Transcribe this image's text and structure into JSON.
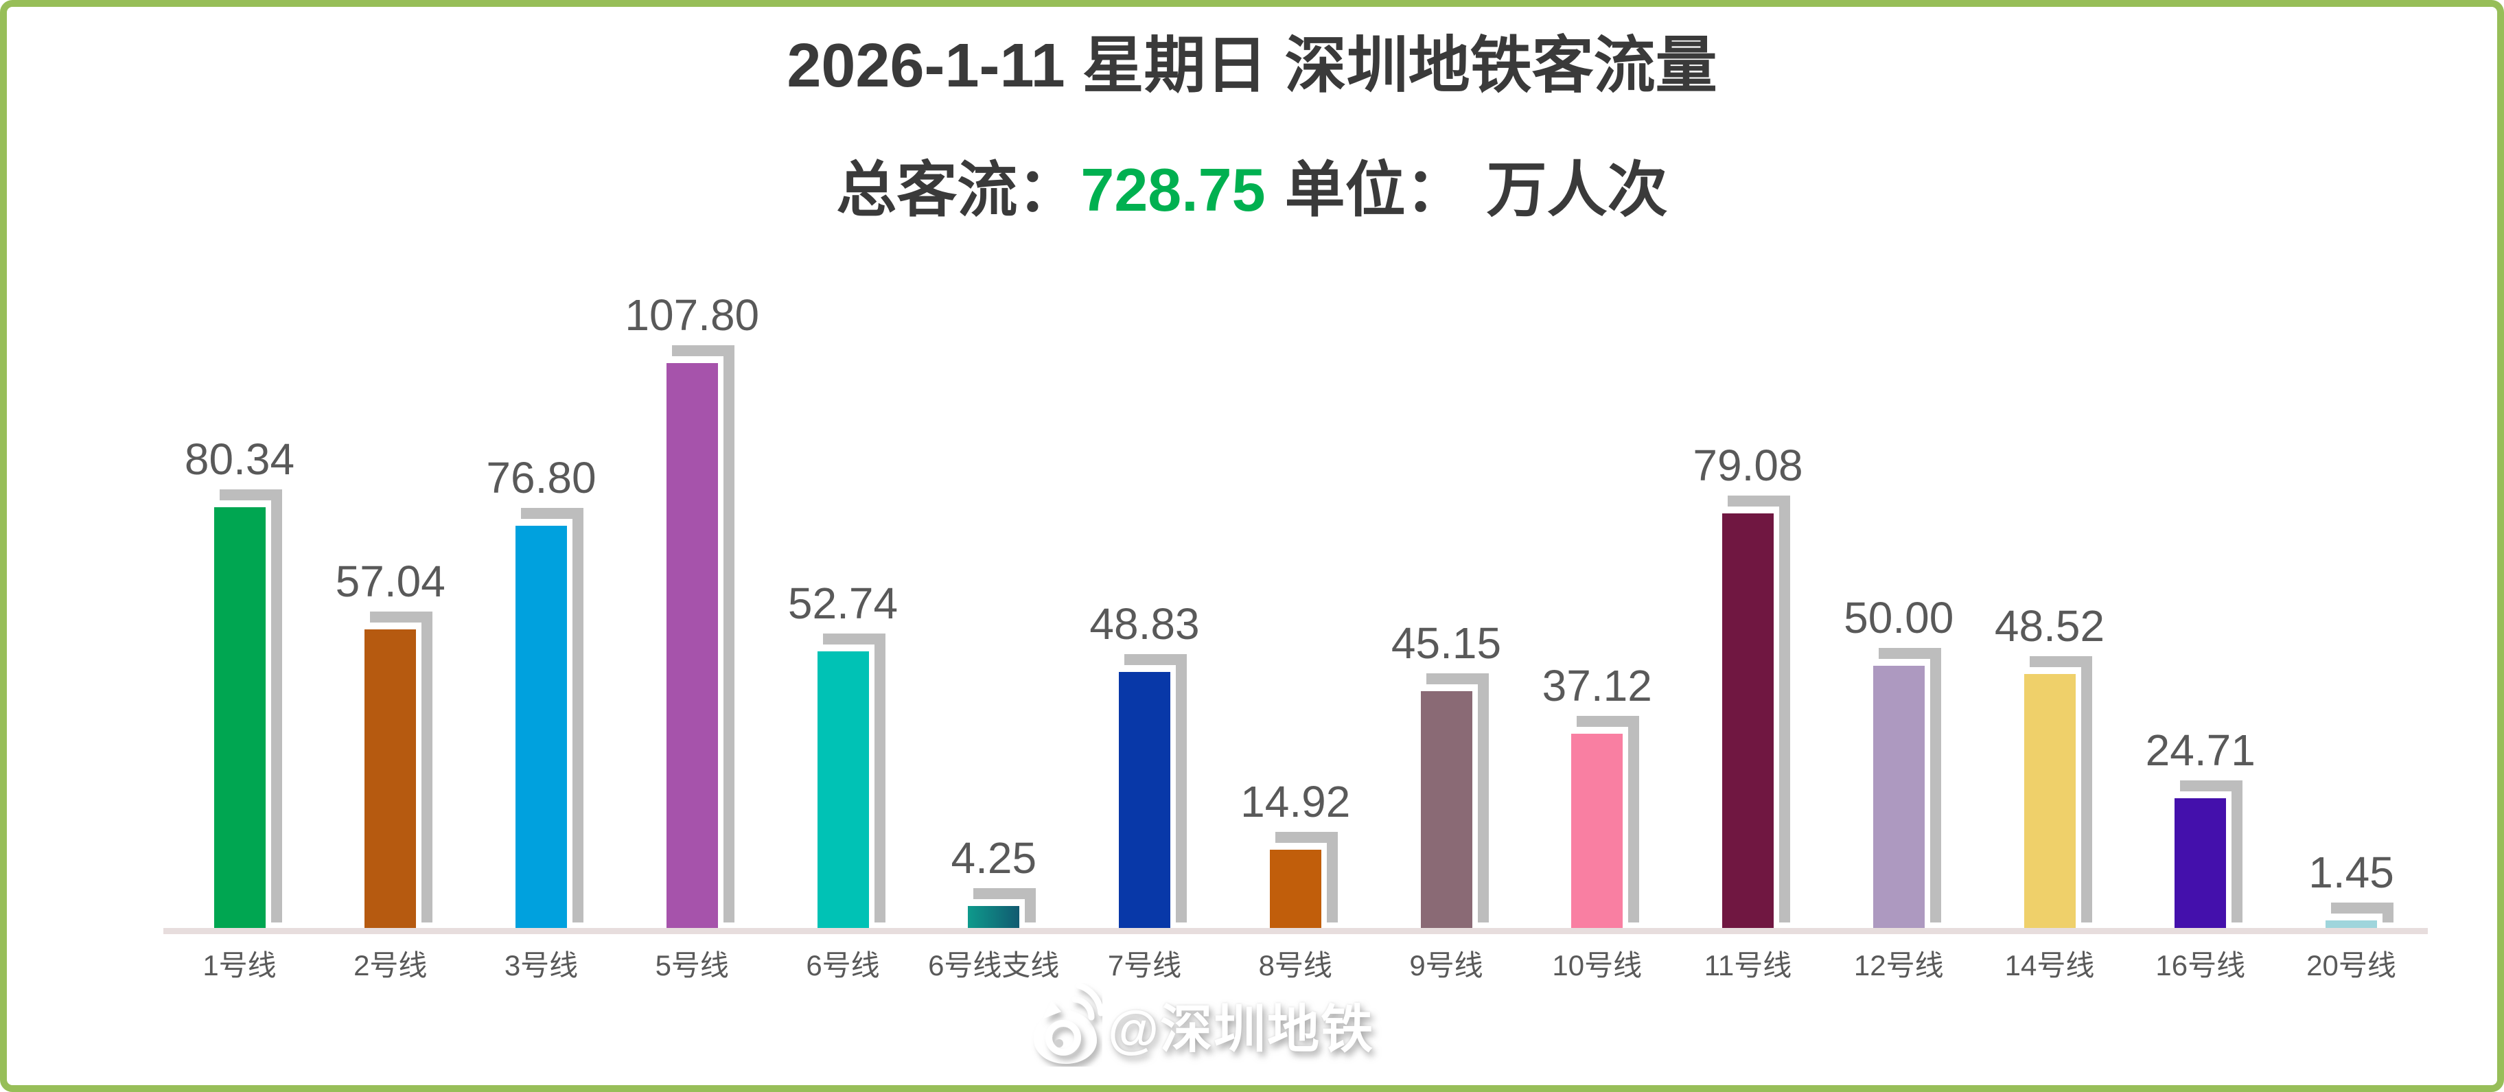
{
  "page": {
    "border_color": "#97BE58",
    "background": "#FFFFFF"
  },
  "header": {
    "title": "2026-1-11 星期日 深圳地铁客流量",
    "subtitle": {
      "total_label": "总客流：",
      "total_value": "728.75",
      "total_value_color": "#00B050",
      "unit_label": "单位：",
      "unit_value": "万人次"
    }
  },
  "watermark": {
    "text": "@深圳地铁",
    "icon": "weibo-logo"
  },
  "chart_data": {
    "type": "bar",
    "title": "2026-1-11 星期日 深圳地铁客流量",
    "categories": [
      "1号线",
      "2号线",
      "3号线",
      "5号线",
      "6号线",
      "6号线支线",
      "7号线",
      "8号线",
      "9号线",
      "10号线",
      "11号线",
      "12号线",
      "14号线",
      "16号线",
      "20号线"
    ],
    "values": [
      80.34,
      57.04,
      76.8,
      107.8,
      52.74,
      4.25,
      48.83,
      14.92,
      45.15,
      37.12,
      79.08,
      50.0,
      48.52,
      24.71,
      1.45
    ],
    "bar_colors": [
      "#00A651",
      "#B65A10",
      "#00A1DE",
      "#A653AB",
      "#00C2B5",
      [
        "#0E9A8C",
        "#115A70"
      ],
      "#0838A8",
      "#C15E0B",
      "#8A6A75",
      "#F97FA2",
      "#701741",
      "#AD99C0",
      "#EFD06A",
      "#4410AC",
      "#9FD5DC"
    ],
    "total": 728.75,
    "unit": "万人次",
    "ylim": [
      0,
      115
    ],
    "grid": false,
    "legend": false,
    "value_label_position": "above bars",
    "shadow_color": "#BDBDBD",
    "axis_line_color": "#E7DDDD",
    "label_color": "#595959"
  }
}
